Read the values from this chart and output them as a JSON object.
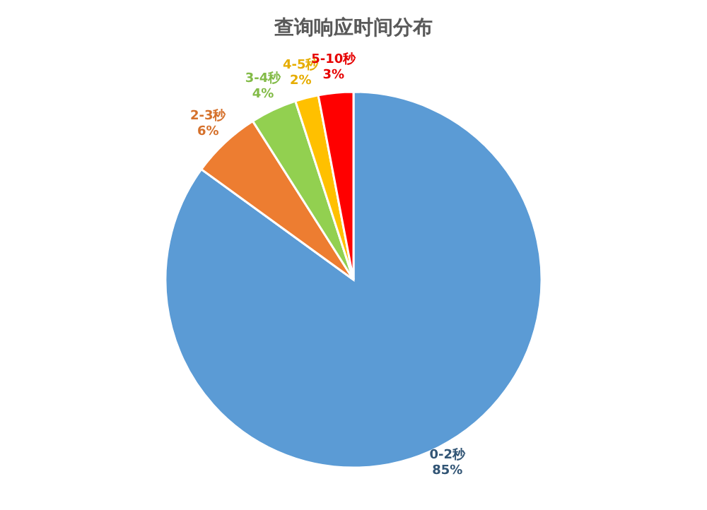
{
  "chart_data": {
    "type": "pie",
    "title": "查询响应时间分布",
    "categories": [
      "0-2秒",
      "2-3秒",
      "3-4秒",
      "4-5秒",
      "5-10秒"
    ],
    "values": [
      85,
      6,
      4,
      2,
      3
    ],
    "colors": [
      "#5b9bd5",
      "#ed7d31",
      "#92d050",
      "#ffc000",
      "#ff0000"
    ],
    "value_labels": [
      "85%",
      "6%",
      "4%",
      "2%",
      "3%"
    ],
    "legend": false
  }
}
